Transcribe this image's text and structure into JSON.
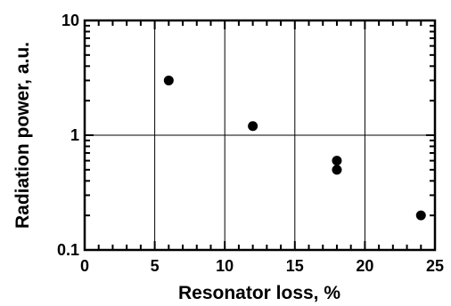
{
  "chart_data": {
    "type": "scatter",
    "title": "",
    "xlabel": "Resonator loss, %",
    "ylabel": "Radiation power, a.u.",
    "xlim": [
      0,
      25
    ],
    "ylim": [
      0.1,
      10
    ],
    "y_scale": "log",
    "grid": true,
    "x_ticks": [
      {
        "value": 0,
        "label": "0"
      },
      {
        "value": 5,
        "label": "5"
      },
      {
        "value": 10,
        "label": "10"
      },
      {
        "value": 15,
        "label": "15"
      },
      {
        "value": 20,
        "label": "20"
      },
      {
        "value": 25,
        "label": "25"
      }
    ],
    "y_ticks": [
      {
        "value": 0.1,
        "label": "0.1"
      },
      {
        "value": 1,
        "label": "1"
      },
      {
        "value": 10,
        "label": "10"
      }
    ],
    "series": [
      {
        "color": "#000000",
        "marker": "filled-circle",
        "points": [
          {
            "x": 6,
            "y": 3.0
          },
          {
            "x": 12,
            "y": 1.2
          },
          {
            "x": 18,
            "y": 0.6
          },
          {
            "x": 18,
            "y": 0.5
          },
          {
            "x": 24,
            "y": 0.2
          }
        ]
      }
    ]
  }
}
